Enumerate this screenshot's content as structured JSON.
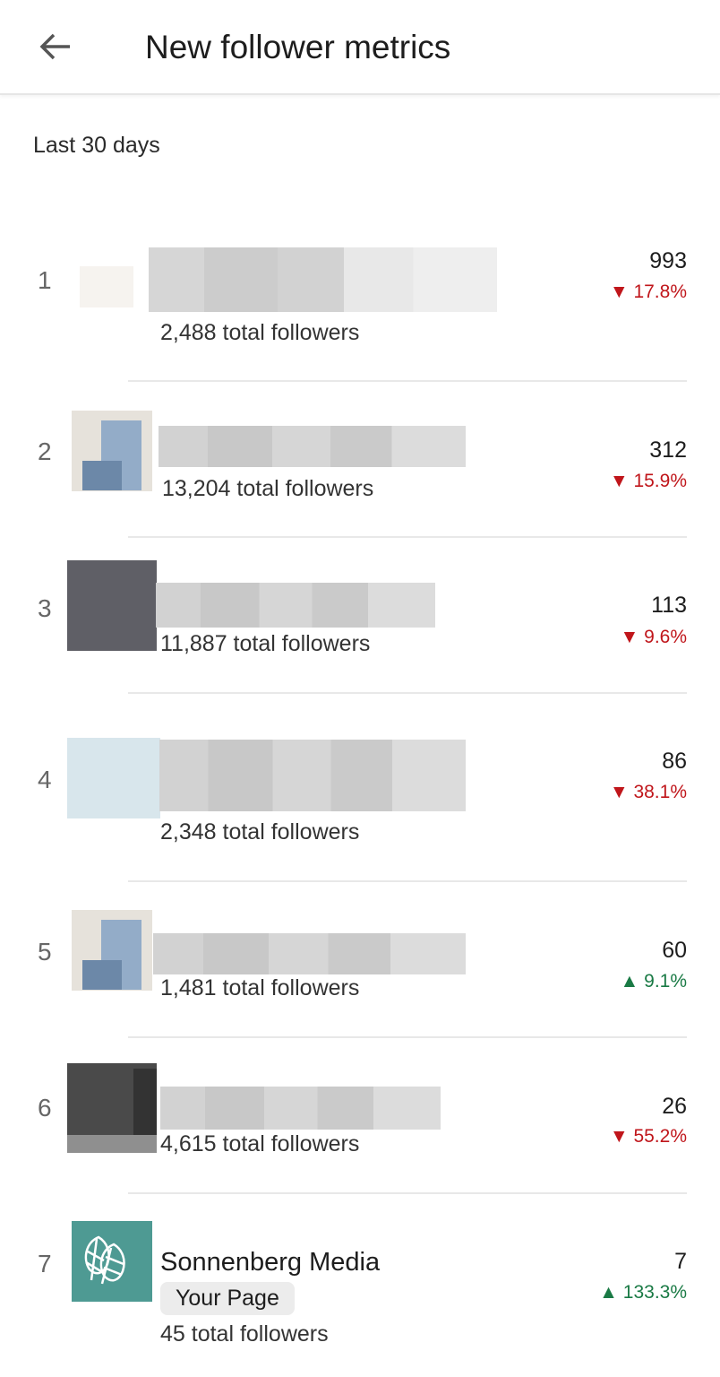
{
  "header": {
    "title": "New follower metrics",
    "back_icon": "arrow-left-icon"
  },
  "period": "Last 30 days",
  "colors": {
    "down": "#c0161b",
    "up": "#1a7a45",
    "your_page_logo": "#4e9a93"
  },
  "rows": [
    {
      "rank": "1",
      "followers": "2,488 total followers",
      "count": "993",
      "change": "▼ 17.8%",
      "trend": "down"
    },
    {
      "rank": "2",
      "followers": "13,204 total followers",
      "count": "312",
      "change": "▼ 15.9%",
      "trend": "down"
    },
    {
      "rank": "3",
      "followers": "11,887 total followers",
      "count": "113",
      "change": "▼ 9.6%",
      "trend": "down"
    },
    {
      "rank": "4",
      "followers": "2,348 total followers",
      "count": "86",
      "change": "▼ 38.1%",
      "trend": "down"
    },
    {
      "rank": "5",
      "followers": "1,481 total followers",
      "count": "60",
      "change": "▲ 9.1%",
      "trend": "up"
    },
    {
      "rank": "6",
      "followers": "4,615 total followers",
      "count": "26",
      "change": "▼ 55.2%",
      "trend": "down"
    },
    {
      "rank": "7",
      "name": "Sonnenberg Media",
      "badge": "Your Page",
      "followers": "45 total followers",
      "count": "7",
      "change": "▲ 133.3%",
      "trend": "up"
    }
  ]
}
